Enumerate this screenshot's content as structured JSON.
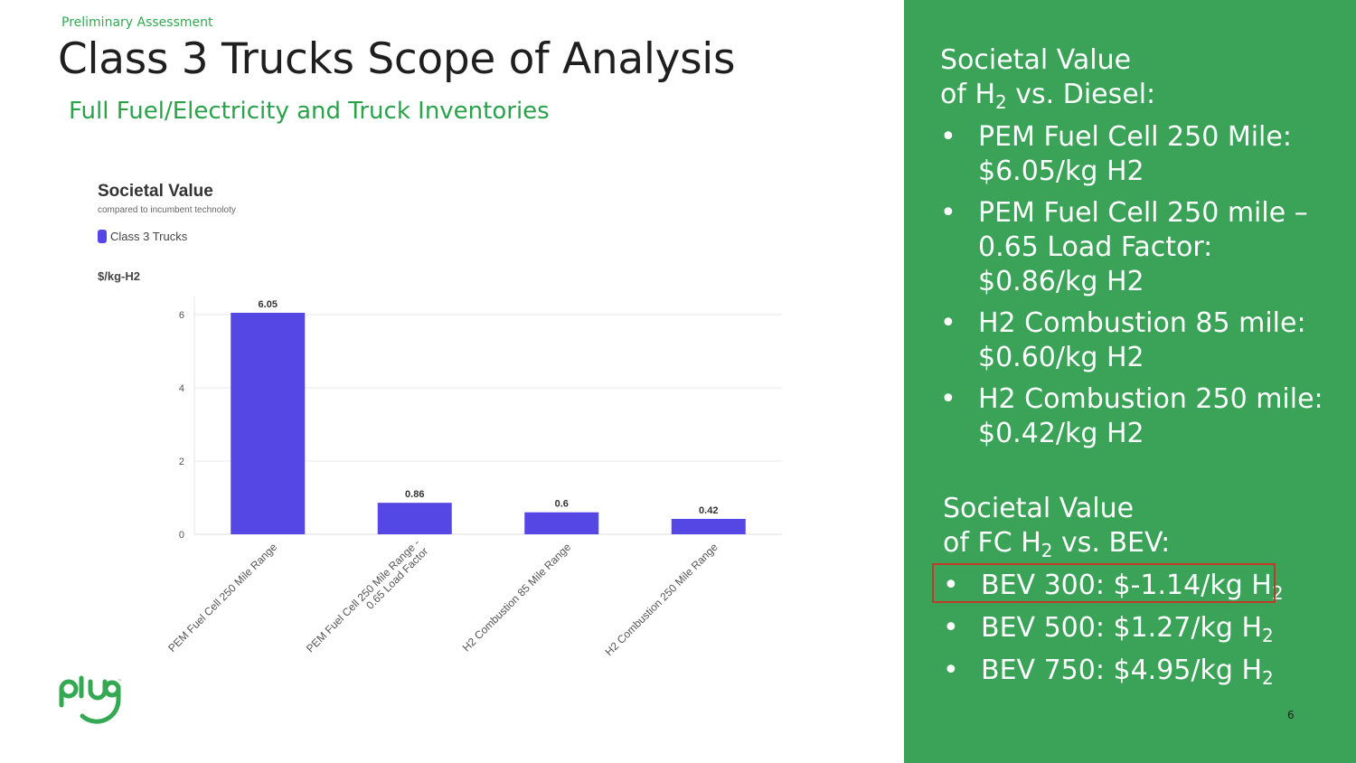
{
  "header": {
    "kicker": "Preliminary Assessment",
    "title": "Class 3 Trucks Scope of Analysis",
    "subtitle": "Full Fuel/Electricity and Truck Inventories"
  },
  "chart_data": {
    "type": "bar",
    "title": "Societal Value",
    "subtitle": "compared to incumbent technoloty",
    "ylabel": "$/kg-H2",
    "legend": "top-left",
    "grid": true,
    "ylim": [
      0,
      6.5
    ],
    "yticks": [
      0,
      2,
      4,
      6
    ],
    "categories": [
      "PEM Fuel Cell 250 Mile Range",
      "PEM Fuel Cell 250 Mile Range - 0.65 Load Factor",
      "H2 Combustion 85 Mile Range",
      "H2 Combustion 250 Mile Range"
    ],
    "category_lines": [
      [
        "PEM Fuel Cell 250 Mile Range"
      ],
      [
        "PEM Fuel Cell 250 Mile Range -",
        "0.65 Load Factor"
      ],
      [
        "H2 Combustion 85 Mile Range"
      ],
      [
        "H2 Combustion 250 Mile Range"
      ]
    ],
    "series": [
      {
        "name": "Class 3 Trucks",
        "values": [
          6.05,
          0.86,
          0.6,
          0.42
        ],
        "labels": [
          "6.05",
          "0.86",
          "0.6",
          "0.42"
        ],
        "color": "#5547e4"
      }
    ]
  },
  "panel": {
    "diesel_heading_1": "Societal Value",
    "diesel_heading_2a": "of H",
    "diesel_heading_2sub": "2",
    "diesel_heading_2b": " vs. Diesel:",
    "bullet": "•",
    "diesel_items": [
      {
        "line1": "PEM Fuel Cell 250 Mile:",
        "line2": "$6.05/kg H2"
      },
      {
        "line1": "PEM Fuel Cell 250 mile –",
        "line2": "0.65 Load Factor:",
        "line3": "$0.86/kg H2"
      },
      {
        "line1": "H2 Combustion 85 mile:",
        "line2": "$0.60/kg H2"
      },
      {
        "line1": "H2 Combustion 250 mile:",
        "line2": "$0.42/kg H2"
      }
    ],
    "bev_heading_1": "Societal Value",
    "bev_heading_2a": "of FC H",
    "bev_heading_2sub": "2",
    "bev_heading_2b": " vs. BEV:",
    "bev_items": [
      {
        "text": "BEV 300: $-1.14/kg H",
        "sub": "2"
      },
      {
        "text": "BEV 500: $1.27/kg H",
        "sub": "2"
      },
      {
        "text": "BEV 750: $4.95/kg H",
        "sub": "2"
      }
    ]
  },
  "logo_text": "plug",
  "page_number": "6",
  "colors": {
    "panel_green": "#3aa358",
    "accent_green": "#2aa24a",
    "bar": "#5547e4",
    "highlight_border": "#c0392b"
  }
}
